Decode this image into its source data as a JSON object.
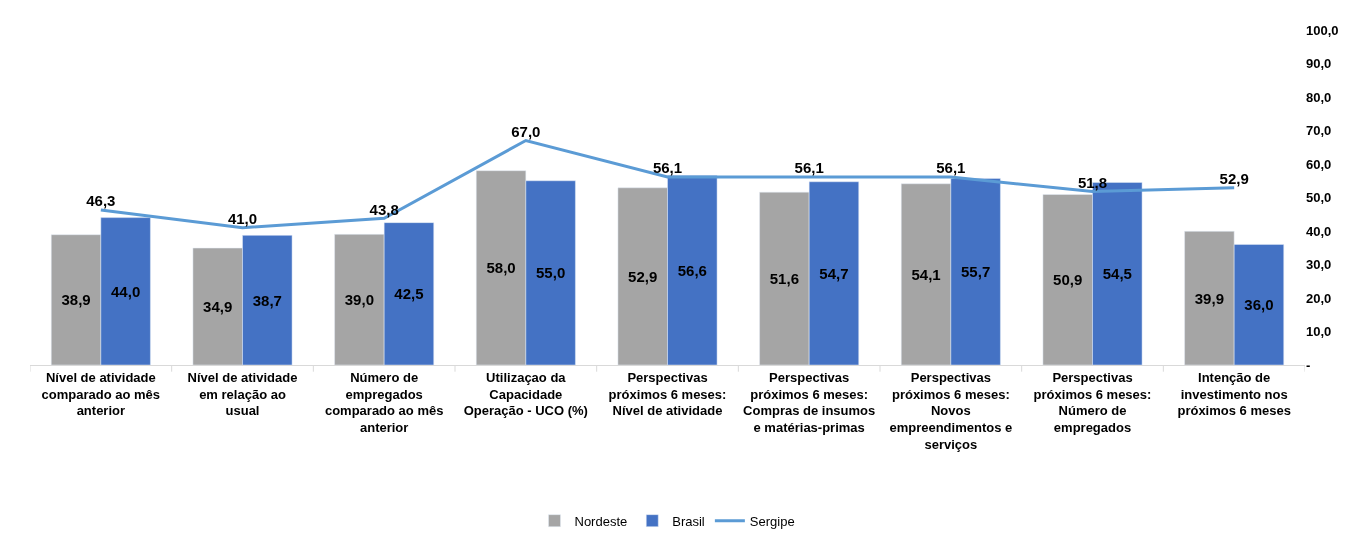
{
  "chart_data": {
    "type": "bar",
    "categories": [
      "Nível de atividade comparado ao mês anterior",
      "Nível de atividade em relação ao usual",
      "Número de empregados comparado ao mês anterior",
      "Utilizaçao da Capacidade Operação - UCO (%)",
      "Perspectivas próximos 6 meses: Nível de atividade",
      "Perspectivas próximos 6 meses: Compras de insumos e matérias-primas",
      "Perspectivas próximos 6 meses: Novos empreendimentos e serviços",
      "Perspectivas próximos 6 meses: Número de empregados",
      "Intenção de investimento nos próximos 6 meses"
    ],
    "series": [
      {
        "name": "Nordeste",
        "color": "#a5a5a5",
        "values": [
          38.9,
          34.9,
          39.0,
          58.0,
          52.9,
          51.6,
          54.1,
          50.9,
          39.9
        ],
        "value_labels": [
          "38,9",
          "34,9",
          "39,0",
          "58,0",
          "52,9",
          "51,6",
          "54,1",
          "50,9",
          "39,9"
        ]
      },
      {
        "name": "Brasil",
        "color": "#4472c4",
        "values": [
          44.0,
          38.7,
          42.5,
          55.0,
          56.6,
          54.7,
          55.7,
          54.5,
          36.0
        ],
        "value_labels": [
          "44,0",
          "38,7",
          "42,5",
          "55,0",
          "56,6",
          "54,7",
          "55,7",
          "54,5",
          "36,0"
        ]
      },
      {
        "name": "Sergipe",
        "type": "line",
        "color": "#5b9bd5",
        "values": [
          46.3,
          41.0,
          43.8,
          67.0,
          56.1,
          56.1,
          56.1,
          51.8,
          52.9
        ],
        "value_labels": [
          "46,3",
          "41,0",
          "43,8",
          "67,0",
          "56,1",
          "56,1",
          "56,1",
          "51,8",
          "52,9"
        ]
      }
    ],
    "ylim": [
      0,
      100
    ],
    "yticks": [
      {
        "value": 0,
        "label": "-"
      },
      {
        "value": 10,
        "label": "10,0"
      },
      {
        "value": 20,
        "label": "20,0"
      },
      {
        "value": 30,
        "label": "30,0"
      },
      {
        "value": 40,
        "label": "40,0"
      },
      {
        "value": 50,
        "label": "50,0"
      },
      {
        "value": 60,
        "label": "60,0"
      },
      {
        "value": 70,
        "label": "70,0"
      },
      {
        "value": 80,
        "label": "80,0"
      },
      {
        "value": 90,
        "label": "90,0"
      },
      {
        "value": 100,
        "label": "100,0"
      }
    ],
    "legend": "bottom",
    "marker": "none"
  }
}
